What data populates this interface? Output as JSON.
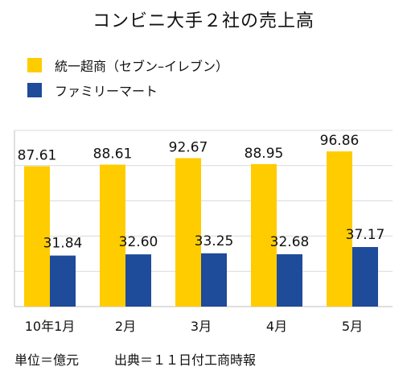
{
  "title": "コンビニ大手２社の売上高",
  "colors": {
    "series1": "#FFCC00",
    "series2": "#1E4B9A",
    "grid": "#D9D9D9",
    "axis": "#BFBFBF"
  },
  "chart_data": {
    "type": "bar",
    "title": "コンビニ大手２社の売上高",
    "categories": [
      "10年1月",
      "2月",
      "3月",
      "4月",
      "5月"
    ],
    "series": [
      {
        "name": "統一超商（セブン–イレブン）",
        "values": [
          87.61,
          88.61,
          92.67,
          88.95,
          96.86
        ]
      },
      {
        "name": "ファミリーマート",
        "values": [
          31.84,
          32.6,
          33.25,
          32.68,
          37.17
        ]
      }
    ],
    "ylim": [
      0,
      110
    ],
    "grid": true,
    "legend": "top-left"
  },
  "footer": {
    "unit": "単位＝億元",
    "source": "出典＝１１日付工商時報"
  }
}
